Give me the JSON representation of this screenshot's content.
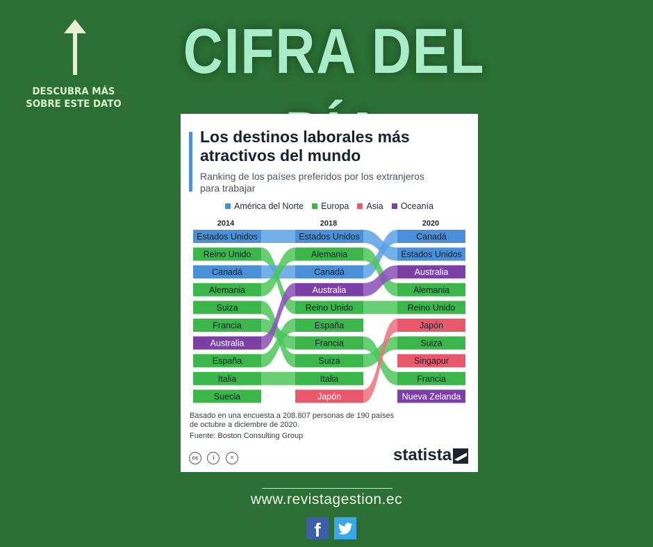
{
  "banner": {
    "cta_line1": "DESCUBRA MÁS",
    "cta_line2": "SOBRE ESTE DATO",
    "headline": "CIFRA DEL DÍA",
    "arrow_icon": "arrow-up-icon"
  },
  "card": {
    "title_line1": "Los destinos laborales más",
    "title_line2": "atractivos del mundo",
    "subtitle_line1": "Ranking de los países preferidos por los extranjeros",
    "subtitle_line2": "para trabajar",
    "note_line1": "Basado en una encuesta a 208.807 personas de 190 países",
    "note_line2": "de octubre a diciembre de 2020.",
    "source": "Fuente: Boston Consulting Group",
    "license_icons": [
      "cc-icon",
      "by-icon",
      "nd-icon"
    ],
    "license_glyphs": [
      "cc",
      "i",
      "="
    ],
    "brand": "statista"
  },
  "chart_data": {
    "type": "bump",
    "columns": [
      "2014",
      "2018",
      "2020"
    ],
    "legend": [
      {
        "name": "América del Norte",
        "color": "#4a90d9"
      },
      {
        "name": "Europa",
        "color": "#3cb54a"
      },
      {
        "name": "Asia",
        "color": "#e85a6b"
      },
      {
        "name": "Oceanía",
        "color": "#7b3fa6"
      }
    ],
    "series": [
      {
        "name": "Estados Unidos",
        "region": "América del Norte",
        "ranks": [
          1,
          1,
          2
        ],
        "labels": [
          "Estados Unidos",
          "Estados Unidos",
          "Estados Unidos"
        ]
      },
      {
        "name": "Reino Unido",
        "region": "Europa",
        "ranks": [
          2,
          5,
          5
        ],
        "labels": [
          "Reino Unido",
          "Reino Unido",
          "Reino Unido"
        ]
      },
      {
        "name": "Canadá",
        "region": "América del Norte",
        "ranks": [
          3,
          3,
          1
        ],
        "labels": [
          "Canadá",
          "Canadá",
          "Canadá"
        ]
      },
      {
        "name": "Alemania",
        "region": "Europa",
        "ranks": [
          4,
          2,
          4
        ],
        "labels": [
          "Alemania",
          "Alemania",
          "Alemania"
        ]
      },
      {
        "name": "Suiza",
        "region": "Europa",
        "ranks": [
          5,
          8,
          7
        ],
        "labels": [
          "Suiza",
          "Suiza",
          "Suiza"
        ]
      },
      {
        "name": "Francia",
        "region": "Europa",
        "ranks": [
          6,
          7,
          9
        ],
        "labels": [
          "Francia",
          "Francia",
          "Francia"
        ]
      },
      {
        "name": "Australia",
        "region": "Oceanía",
        "ranks": [
          7,
          4,
          3
        ],
        "labels": [
          "Australia",
          "Australia",
          "Australia"
        ]
      },
      {
        "name": "España",
        "region": "Europa",
        "ranks": [
          8,
          6,
          null
        ],
        "labels": [
          "España",
          "España",
          ""
        ]
      },
      {
        "name": "Italia",
        "region": "Europa",
        "ranks": [
          9,
          9,
          null
        ],
        "labels": [
          "Italia",
          "Italia",
          ""
        ]
      },
      {
        "name": "Suecia",
        "region": "Europa",
        "ranks": [
          10,
          null,
          null
        ],
        "labels": [
          "Suecia",
          "",
          ""
        ]
      },
      {
        "name": "Japón",
        "region": "Asia",
        "ranks": [
          null,
          10,
          6
        ],
        "labels": [
          "",
          "Japón",
          "Japón"
        ]
      },
      {
        "name": "Singapur",
        "region": "Asia",
        "ranks": [
          null,
          null,
          8
        ],
        "labels": [
          "",
          "",
          "Singapur"
        ]
      },
      {
        "name": "Nueva Zelanda",
        "region": "Oceanía",
        "ranks": [
          null,
          null,
          10
        ],
        "labels": [
          "",
          "",
          "Nueva Zelanda"
        ]
      }
    ]
  },
  "footer": {
    "url": "www.revistagestion.ec",
    "social_icons": [
      "facebook-icon",
      "twitter-icon"
    ],
    "facebook_glyph": "f"
  }
}
